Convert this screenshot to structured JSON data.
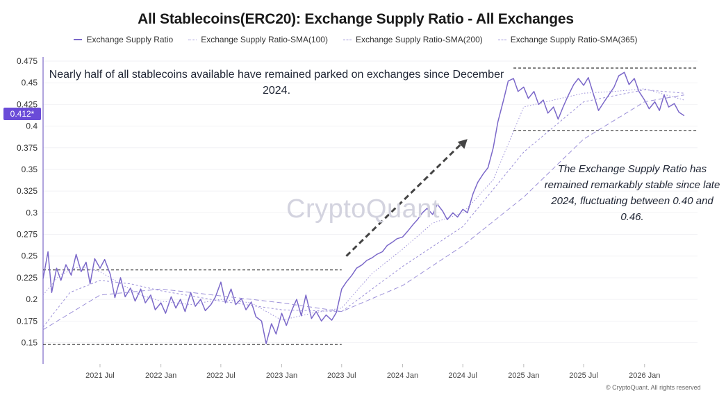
{
  "title": "All Stablecoins(ERC20): Exchange Supply Ratio - All Exchanges",
  "legend": [
    {
      "label": "Exchange Supply Ratio",
      "style": "solid",
      "color": "#7b68c9"
    },
    {
      "label": "Exchange Supply Ratio-SMA(100)",
      "style": "dotted",
      "color": "#9b8fd8"
    },
    {
      "label": "Exchange Supply Ratio-SMA(200)",
      "style": "dashed-short",
      "color": "#9b8fd8"
    },
    {
      "label": "Exchange Supply Ratio-SMA(365)",
      "style": "dashed-long",
      "color": "#9b8fd8"
    }
  ],
  "annotations": {
    "top_note": "Nearly half of all stablecoins available have remained parked on exchanges since December 2024.",
    "right_note": "The Exchange Supply Ratio has remained remarkably stable since late 2024, fluctuating between 0.40 and 0.46."
  },
  "watermark": "CryptoQuant",
  "copyright": "© CryptoQuant. All rights reserved",
  "current_value_label": "0.412*",
  "colors": {
    "series": "#7b68c9",
    "sma": "#9b8fd8",
    "badge": "#6a4bd8",
    "reference_lines": "#333333",
    "arrow": "#444444"
  },
  "chart_data": {
    "type": "line",
    "x_ticks": [
      "2021 Jul",
      "2022 Jan",
      "2022 Jul",
      "2023 Jan",
      "2023 Jul",
      "2024 Jan",
      "2024 Jul",
      "2025 Jan",
      "2025 Jul",
      "2026 Jan"
    ],
    "y_ticks": [
      "0.475",
      "0.45",
      "0.425",
      "0.4",
      "0.375",
      "0.35",
      "0.325",
      "0.3",
      "0.275",
      "0.25",
      "0.225",
      "0.2",
      "0.175",
      "0.15"
    ],
    "ylim": [
      0.14,
      0.475
    ],
    "xlim": [
      "2021-01-10",
      "2026-06-10"
    ],
    "series": [
      {
        "name": "Exchange Supply Ratio",
        "points": [
          [
            "2021-01-10",
            0.224
          ],
          [
            "2021-01-25",
            0.255
          ],
          [
            "2021-02-05",
            0.208
          ],
          [
            "2021-02-20",
            0.236
          ],
          [
            "2021-03-05",
            0.222
          ],
          [
            "2021-03-20",
            0.24
          ],
          [
            "2021-04-05",
            0.228
          ],
          [
            "2021-04-20",
            0.252
          ],
          [
            "2021-05-05",
            0.232
          ],
          [
            "2021-05-20",
            0.243
          ],
          [
            "2021-06-01",
            0.218
          ],
          [
            "2021-06-15",
            0.247
          ],
          [
            "2021-07-01",
            0.236
          ],
          [
            "2021-07-15",
            0.246
          ],
          [
            "2021-08-01",
            0.229
          ],
          [
            "2021-08-15",
            0.202
          ],
          [
            "2021-09-01",
            0.225
          ],
          [
            "2021-09-15",
            0.203
          ],
          [
            "2021-10-01",
            0.213
          ],
          [
            "2021-10-15",
            0.198
          ],
          [
            "2021-11-01",
            0.212
          ],
          [
            "2021-11-15",
            0.196
          ],
          [
            "2021-12-01",
            0.205
          ],
          [
            "2021-12-15",
            0.188
          ],
          [
            "2022-01-01",
            0.196
          ],
          [
            "2022-01-15",
            0.184
          ],
          [
            "2022-02-01",
            0.203
          ],
          [
            "2022-02-15",
            0.19
          ],
          [
            "2022-03-01",
            0.2
          ],
          [
            "2022-03-15",
            0.186
          ],
          [
            "2022-04-01",
            0.208
          ],
          [
            "2022-04-15",
            0.192
          ],
          [
            "2022-05-01",
            0.2
          ],
          [
            "2022-05-15",
            0.187
          ],
          [
            "2022-06-01",
            0.194
          ],
          [
            "2022-06-15",
            0.203
          ],
          [
            "2022-07-01",
            0.22
          ],
          [
            "2022-07-15",
            0.196
          ],
          [
            "2022-08-01",
            0.212
          ],
          [
            "2022-08-15",
            0.194
          ],
          [
            "2022-09-01",
            0.201
          ],
          [
            "2022-09-15",
            0.188
          ],
          [
            "2022-10-01",
            0.197
          ],
          [
            "2022-10-15",
            0.18
          ],
          [
            "2022-11-01",
            0.175
          ],
          [
            "2022-11-15",
            0.149
          ],
          [
            "2022-12-01",
            0.172
          ],
          [
            "2022-12-15",
            0.16
          ],
          [
            "2023-01-01",
            0.184
          ],
          [
            "2023-01-15",
            0.17
          ],
          [
            "2023-02-01",
            0.188
          ],
          [
            "2023-02-15",
            0.2
          ],
          [
            "2023-03-01",
            0.181
          ],
          [
            "2023-03-15",
            0.205
          ],
          [
            "2023-04-01",
            0.178
          ],
          [
            "2023-04-15",
            0.186
          ],
          [
            "2023-05-01",
            0.175
          ],
          [
            "2023-05-15",
            0.182
          ],
          [
            "2023-06-01",
            0.176
          ],
          [
            "2023-06-15",
            0.185
          ],
          [
            "2023-07-01",
            0.212
          ],
          [
            "2023-07-15",
            0.22
          ],
          [
            "2023-08-01",
            0.228
          ],
          [
            "2023-08-15",
            0.236
          ],
          [
            "2023-09-01",
            0.24
          ],
          [
            "2023-09-15",
            0.245
          ],
          [
            "2023-10-01",
            0.248
          ],
          [
            "2023-10-15",
            0.252
          ],
          [
            "2023-11-01",
            0.255
          ],
          [
            "2023-11-15",
            0.262
          ],
          [
            "2023-12-01",
            0.266
          ],
          [
            "2023-12-15",
            0.27
          ],
          [
            "2024-01-01",
            0.272
          ],
          [
            "2024-01-15",
            0.278
          ],
          [
            "2024-02-01",
            0.286
          ],
          [
            "2024-02-15",
            0.292
          ],
          [
            "2024-03-01",
            0.3
          ],
          [
            "2024-03-15",
            0.305
          ],
          [
            "2024-04-01",
            0.298
          ],
          [
            "2024-04-15",
            0.31
          ],
          [
            "2024-05-01",
            0.302
          ],
          [
            "2024-05-15",
            0.292
          ],
          [
            "2024-06-01",
            0.3
          ],
          [
            "2024-06-15",
            0.295
          ],
          [
            "2024-07-01",
            0.304
          ],
          [
            "2024-07-15",
            0.3
          ],
          [
            "2024-08-01",
            0.322
          ],
          [
            "2024-08-15",
            0.335
          ],
          [
            "2024-09-01",
            0.345
          ],
          [
            "2024-09-15",
            0.352
          ],
          [
            "2024-10-01",
            0.375
          ],
          [
            "2024-10-15",
            0.405
          ],
          [
            "2024-11-01",
            0.43
          ],
          [
            "2024-11-15",
            0.452
          ],
          [
            "2024-12-01",
            0.455
          ],
          [
            "2024-12-15",
            0.44
          ],
          [
            "2025-01-01",
            0.445
          ],
          [
            "2025-01-15",
            0.432
          ],
          [
            "2025-02-01",
            0.44
          ],
          [
            "2025-02-15",
            0.425
          ],
          [
            "2025-03-01",
            0.43
          ],
          [
            "2025-03-15",
            0.415
          ],
          [
            "2025-04-01",
            0.422
          ],
          [
            "2025-04-15",
            0.408
          ],
          [
            "2025-05-01",
            0.423
          ],
          [
            "2025-05-15",
            0.435
          ],
          [
            "2025-06-01",
            0.448
          ],
          [
            "2025-06-15",
            0.455
          ],
          [
            "2025-07-01",
            0.447
          ],
          [
            "2025-07-15",
            0.456
          ],
          [
            "2025-08-01",
            0.435
          ],
          [
            "2025-08-15",
            0.418
          ],
          [
            "2025-09-01",
            0.428
          ],
          [
            "2025-09-15",
            0.436
          ],
          [
            "2025-10-01",
            0.445
          ],
          [
            "2025-10-15",
            0.458
          ],
          [
            "2025-11-01",
            0.462
          ],
          [
            "2025-11-15",
            0.448
          ],
          [
            "2025-12-01",
            0.455
          ],
          [
            "2025-12-15",
            0.44
          ],
          [
            "2026-01-01",
            0.43
          ],
          [
            "2026-01-15",
            0.42
          ],
          [
            "2026-02-01",
            0.428
          ],
          [
            "2026-02-15",
            0.418
          ],
          [
            "2026-03-01",
            0.436
          ],
          [
            "2026-03-15",
            0.422
          ],
          [
            "2026-04-01",
            0.426
          ],
          [
            "2026-04-15",
            0.416
          ],
          [
            "2026-05-01",
            0.412
          ]
        ]
      },
      {
        "name": "Exchange Supply Ratio-SMA(100)",
        "points": [
          [
            "2021-01-10",
            0.205
          ],
          [
            "2021-03-01",
            0.228
          ],
          [
            "2021-05-01",
            0.238
          ],
          [
            "2021-07-01",
            0.232
          ],
          [
            "2021-09-01",
            0.218
          ],
          [
            "2021-11-01",
            0.205
          ],
          [
            "2022-01-01",
            0.198
          ],
          [
            "2022-04-01",
            0.194
          ],
          [
            "2022-07-01",
            0.2
          ],
          [
            "2022-10-01",
            0.196
          ],
          [
            "2023-01-01",
            0.176
          ],
          [
            "2023-04-01",
            0.184
          ],
          [
            "2023-07-01",
            0.19
          ],
          [
            "2023-10-01",
            0.23
          ],
          [
            "2024-01-01",
            0.258
          ],
          [
            "2024-04-01",
            0.288
          ],
          [
            "2024-07-01",
            0.3
          ],
          [
            "2024-10-01",
            0.338
          ],
          [
            "2025-01-01",
            0.422
          ],
          [
            "2025-04-01",
            0.43
          ],
          [
            "2025-07-01",
            0.438
          ],
          [
            "2025-10-01",
            0.44
          ],
          [
            "2026-01-01",
            0.443
          ],
          [
            "2026-05-01",
            0.43
          ]
        ]
      },
      {
        "name": "Exchange Supply Ratio-SMA(200)",
        "points": [
          [
            "2021-01-10",
            0.168
          ],
          [
            "2021-04-01",
            0.208
          ],
          [
            "2021-07-01",
            0.222
          ],
          [
            "2021-10-01",
            0.218
          ],
          [
            "2022-01-01",
            0.21
          ],
          [
            "2022-07-01",
            0.198
          ],
          [
            "2023-01-01",
            0.188
          ],
          [
            "2023-07-01",
            0.186
          ],
          [
            "2024-01-01",
            0.238
          ],
          [
            "2024-07-01",
            0.284
          ],
          [
            "2025-01-01",
            0.37
          ],
          [
            "2025-07-01",
            0.428
          ],
          [
            "2026-01-01",
            0.442
          ],
          [
            "2026-05-01",
            0.438
          ]
        ]
      },
      {
        "name": "Exchange Supply Ratio-SMA(365)",
        "points": [
          [
            "2021-01-10",
            0.165
          ],
          [
            "2021-07-01",
            0.205
          ],
          [
            "2022-01-01",
            0.212
          ],
          [
            "2022-07-01",
            0.204
          ],
          [
            "2023-01-01",
            0.196
          ],
          [
            "2023-07-01",
            0.186
          ],
          [
            "2024-01-01",
            0.216
          ],
          [
            "2024-07-01",
            0.262
          ],
          [
            "2025-01-01",
            0.318
          ],
          [
            "2025-07-01",
            0.385
          ],
          [
            "2026-01-01",
            0.428
          ],
          [
            "2026-05-01",
            0.436
          ]
        ]
      }
    ],
    "reference_lines": [
      {
        "y": 0.234,
        "from": "2021-01-10",
        "to": "2023-07-01"
      },
      {
        "y": 0.148,
        "from": "2021-01-10",
        "to": "2023-07-01"
      },
      {
        "y": 0.467,
        "from": "2024-12-01",
        "to": "2026-06-10"
      },
      {
        "y": 0.395,
        "from": "2024-12-01",
        "to": "2026-06-10"
      }
    ],
    "trend_arrow": {
      "from": [
        "2023-07-15",
        0.25
      ],
      "to": [
        "2024-07-15",
        0.385
      ]
    }
  }
}
